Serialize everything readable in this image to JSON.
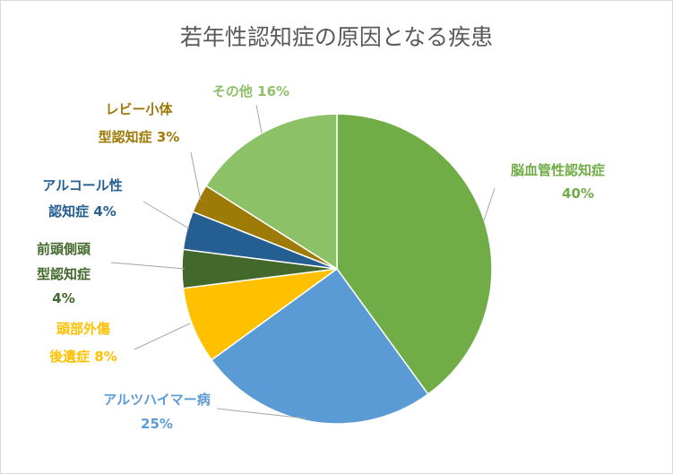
{
  "chart_data": {
    "type": "pie",
    "title": "若年性認知症の原因となる疾患",
    "slices": [
      {
        "label_lines": [
          "脳血管性認知症",
          "40%"
        ],
        "value": 40,
        "color": "#70ad47",
        "label_color": "#70ad47"
      },
      {
        "label_lines": [
          "アルツハイマー病",
          "25%"
        ],
        "value": 25,
        "color": "#5b9bd5",
        "label_color": "#5b9bd5"
      },
      {
        "label_lines": [
          "頭部外傷",
          "後遺症 8%"
        ],
        "value": 8,
        "color": "#ffc000",
        "label_color": "#ffc000"
      },
      {
        "label_lines": [
          "前頭側頭",
          "型認知症",
          "4%"
        ],
        "value": 4,
        "color": "#43682b",
        "label_color": "#43682b"
      },
      {
        "label_lines": [
          "アルコール性",
          "認知症 4%"
        ],
        "value": 4,
        "color": "#255e91",
        "label_color": "#255e91"
      },
      {
        "label_lines": [
          "レビー小体",
          "型認知症 3%"
        ],
        "value": 3,
        "color": "#9e7a07",
        "label_color": "#9e7a07"
      },
      {
        "label_lines": [
          "その他 16%"
        ],
        "value": 16,
        "color": "#8cc168",
        "label_color": "#8cc168"
      }
    ]
  }
}
